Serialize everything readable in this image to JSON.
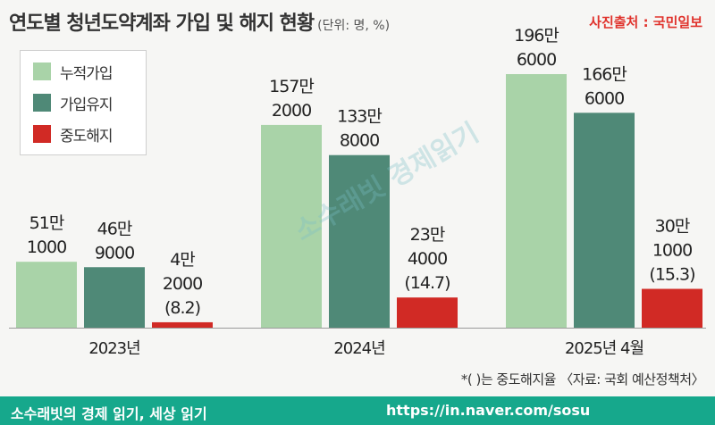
{
  "header": {
    "title": "연도별 청년도약계좌 가입 및 해지 현황",
    "unit": "(단위: 명, %)",
    "credit": "사진출처 : 국민일보"
  },
  "legend": [
    {
      "label": "누적가입",
      "color": "#a9d3a8"
    },
    {
      "label": "가입유지",
      "color": "#4f8977"
    },
    {
      "label": "중도해지",
      "color": "#d12a25"
    }
  ],
  "chart_data": {
    "type": "bar",
    "categories": [
      "2023년",
      "2024년",
      "2025년 4월"
    ],
    "series": [
      {
        "name": "누적가입",
        "values": [
          511000,
          1572000,
          1966000
        ],
        "labels": [
          [
            "51만",
            "1000"
          ],
          [
            "157만",
            "2000"
          ],
          [
            "196만",
            "6000"
          ]
        ],
        "color": "#a9d3a8"
      },
      {
        "name": "가입유지",
        "values": [
          469000,
          1338000,
          1666000
        ],
        "labels": [
          [
            "46만",
            "9000"
          ],
          [
            "133만",
            "8000"
          ],
          [
            "166만",
            "6000"
          ]
        ],
        "color": "#4f8977"
      },
      {
        "name": "중도해지",
        "values": [
          42000,
          234000,
          301000
        ],
        "labels": [
          [
            "4만",
            "2000",
            "(8.2)"
          ],
          [
            "23만",
            "4000",
            "(14.7)"
          ],
          [
            "30만",
            "1000",
            "(15.3)"
          ]
        ],
        "rates": [
          8.2,
          14.7,
          15.3
        ],
        "color": "#d12a25"
      }
    ],
    "ylim": [
      0,
      1966000
    ],
    "grid": false,
    "legend_position": "top-left"
  },
  "footnote": "*( )는 중도해지율 〈자료: 국회 예산정책처〉",
  "watermark": "소수래빗 경제읽기",
  "footer": {
    "left": "소수래빗의 경제 읽기, 세상 읽기",
    "right": "https://in.naver.com/sosu"
  }
}
